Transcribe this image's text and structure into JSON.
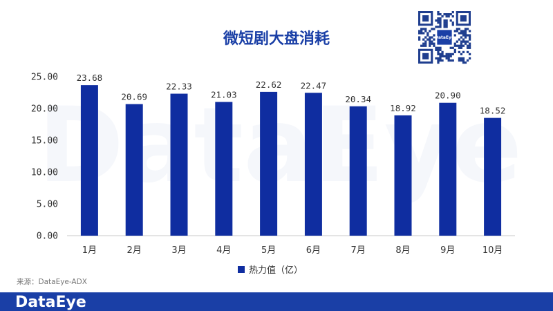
{
  "chart_data": {
    "type": "bar",
    "title": "微短剧大盘消耗",
    "categories": [
      "1月",
      "2月",
      "3月",
      "4月",
      "5月",
      "6月",
      "7月",
      "8月",
      "9月",
      "10月"
    ],
    "series": [
      {
        "name": "热力值（亿）",
        "values": [
          23.68,
          20.69,
          22.33,
          21.03,
          22.62,
          22.47,
          20.34,
          18.92,
          20.9,
          18.52
        ]
      }
    ],
    "value_labels": [
      "23.68",
      "20.69",
      "22.33",
      "21.03",
      "22.62",
      "22.47",
      "20.34",
      "18.92",
      "20.90",
      "18.52"
    ],
    "y_ticks": [
      0,
      5,
      10,
      15,
      20,
      25
    ],
    "y_tick_labels": [
      "0.00",
      "5.00",
      "10.00",
      "15.00",
      "20.00",
      "25.00"
    ],
    "ylim": [
      0,
      25
    ],
    "grid": false,
    "legend_position": "bottom-center",
    "bar_color": "#0f2da0"
  },
  "source": "来源：DataEye-ADX",
  "watermark": "DataEye",
  "footer": {
    "brand": "DataEye",
    "color": "#1a3fa6"
  },
  "qr": {
    "logo_text": "DataEye"
  }
}
